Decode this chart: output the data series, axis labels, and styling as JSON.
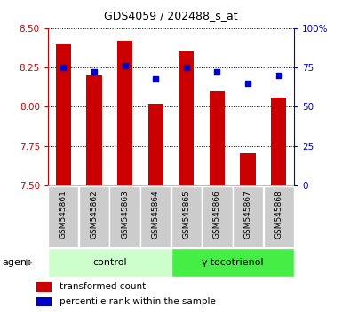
{
  "title": "GDS4059 / 202488_s_at",
  "samples": [
    "GSM545861",
    "GSM545862",
    "GSM545863",
    "GSM545864",
    "GSM545865",
    "GSM545866",
    "GSM545867",
    "GSM545868"
  ],
  "transformed_count": [
    8.4,
    8.2,
    8.42,
    8.02,
    8.35,
    8.1,
    7.7,
    8.06
  ],
  "percentile_rank": [
    75,
    72,
    76,
    68,
    75,
    72,
    65,
    70
  ],
  "ylim_left": [
    7.5,
    8.5
  ],
  "ylim_right": [
    0,
    100
  ],
  "yticks_left": [
    7.5,
    7.75,
    8.0,
    8.25,
    8.5
  ],
  "yticks_right": [
    0,
    25,
    50,
    75,
    100
  ],
  "ytick_labels_right": [
    "0",
    "25",
    "50",
    "75",
    "100%"
  ],
  "bar_color": "#cc0000",
  "scatter_color": "#0000cc",
  "bar_bottom": 7.5,
  "groups": [
    {
      "label": "control",
      "start": 0,
      "end": 4,
      "color": "#ccffcc"
    },
    {
      "label": "γ-tocotrienol",
      "start": 4,
      "end": 8,
      "color": "#44ee44"
    }
  ],
  "agent_label": "agent",
  "legend_bar_label": "transformed count",
  "legend_scatter_label": "percentile rank within the sample",
  "grid_color": "#000000",
  "left_axis_color": "#cc0000",
  "right_axis_color": "#0000cc",
  "sample_label_bg": "#cccccc",
  "title_fontsize": 9,
  "tick_fontsize": 7.5,
  "sample_fontsize": 6.5,
  "group_fontsize": 8,
  "legend_fontsize": 7.5
}
